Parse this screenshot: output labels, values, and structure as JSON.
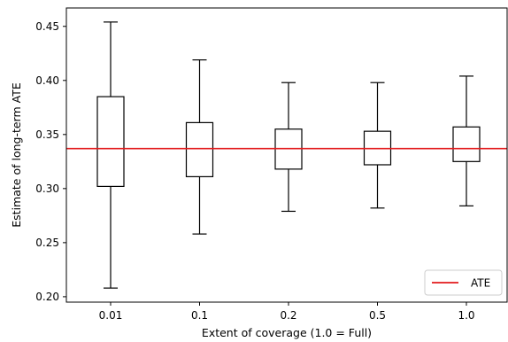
{
  "chart_data": {
    "type": "boxplot",
    "xlabel": "Extent of coverage (1.0 = Full)",
    "ylabel": "Estimate of long-term ATE",
    "categories": [
      "0.01",
      "0.1",
      "0.2",
      "0.5",
      "1.0"
    ],
    "boxes": [
      {
        "category": "0.01",
        "whisker_low": 0.208,
        "q1": 0.302,
        "median": 0.337,
        "q3": 0.385,
        "whisker_high": 0.454
      },
      {
        "category": "0.1",
        "whisker_low": 0.258,
        "q1": 0.311,
        "median": 0.337,
        "q3": 0.361,
        "whisker_high": 0.419
      },
      {
        "category": "0.2",
        "whisker_low": 0.279,
        "q1": 0.318,
        "median": 0.337,
        "q3": 0.355,
        "whisker_high": 0.398
      },
      {
        "category": "0.5",
        "whisker_low": 0.282,
        "q1": 0.322,
        "median": 0.337,
        "q3": 0.353,
        "whisker_high": 0.398
      },
      {
        "category": "1.0",
        "whisker_low": 0.284,
        "q1": 0.325,
        "median": 0.337,
        "q3": 0.357,
        "whisker_high": 0.404
      }
    ],
    "reference_line": {
      "label": "ATE",
      "value": 0.337,
      "color": "#e31a1c"
    },
    "box_color": "#000000",
    "ylim": [
      0.195,
      0.467
    ],
    "yticks": [
      "0.20",
      "0.25",
      "0.30",
      "0.35",
      "0.40",
      "0.45"
    ],
    "grid": false,
    "legend": {
      "position": "lower-right",
      "entries": [
        "ATE"
      ]
    }
  }
}
